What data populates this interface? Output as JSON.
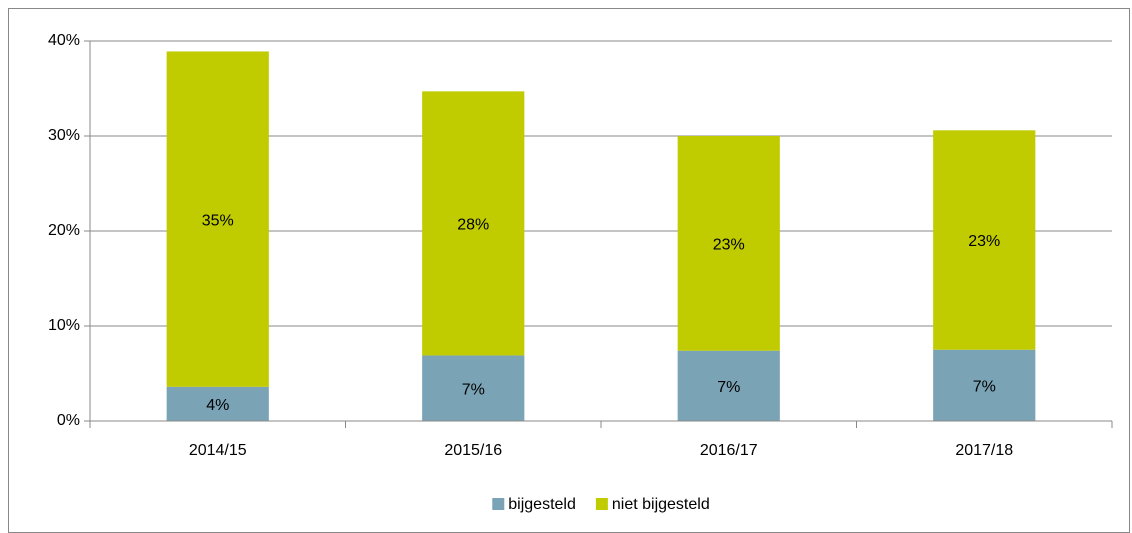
{
  "chart_data": {
    "type": "stacked_bar",
    "categories": [
      "2014/15",
      "2015/16",
      "2016/17",
      "2017/18"
    ],
    "series": [
      {
        "name": "bijgesteld",
        "color": "#7aa3b5",
        "values": [
          3.6,
          6.9,
          7.4,
          7.5
        ],
        "value_labels": [
          "4%",
          "7%",
          "7%",
          "7%"
        ]
      },
      {
        "name": "niet bijgesteld",
        "color": "#c0cc00",
        "values": [
          35.3,
          27.8,
          22.6,
          23.1
        ],
        "value_labels": [
          "35%",
          "28%",
          "23%",
          "23%"
        ]
      }
    ],
    "ylim": [
      0,
      40
    ],
    "yticks": [
      {
        "value": 0,
        "label": "0%"
      },
      {
        "value": 10,
        "label": "10%"
      },
      {
        "value": 20,
        "label": "20%"
      },
      {
        "value": 30,
        "label": "30%"
      },
      {
        "value": 40,
        "label": "40%"
      }
    ],
    "grid": true,
    "legend": "bottom"
  }
}
